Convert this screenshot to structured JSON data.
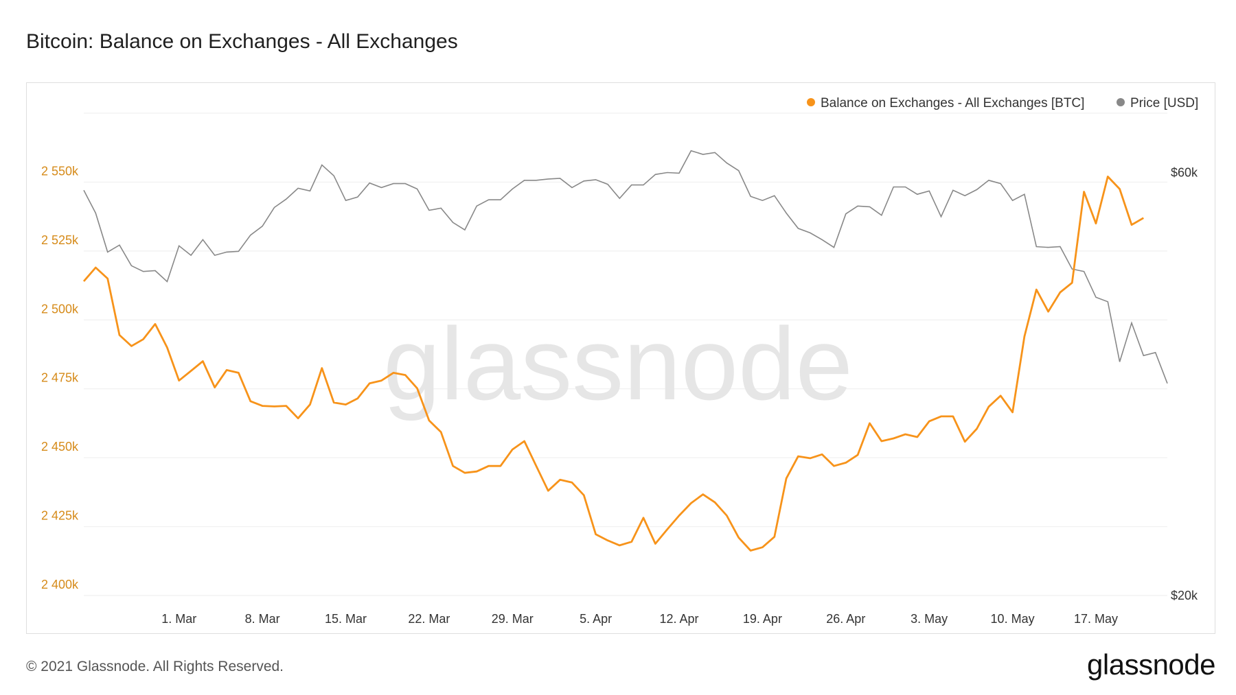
{
  "title": "Bitcoin: Balance on Exchanges - All Exchanges",
  "footer": {
    "copyright": "© 2021 Glassnode. All Rights Reserved.",
    "logo": "glassnode"
  },
  "watermark": "glassnode",
  "colors": {
    "balance": "#f7931a",
    "price": "#888888",
    "grid": "#eeeeee",
    "left_tick": "#d68b1a"
  },
  "chart_data": {
    "type": "line",
    "x_start": "2021-02-21",
    "x_end": "2021-05-23",
    "x_ticks": [
      {
        "label": "1. Mar",
        "date": "2021-03-01"
      },
      {
        "label": "8. Mar",
        "date": "2021-03-08"
      },
      {
        "label": "15. Mar",
        "date": "2021-03-15"
      },
      {
        "label": "22. Mar",
        "date": "2021-03-22"
      },
      {
        "label": "29. Mar",
        "date": "2021-03-29"
      },
      {
        "label": "5. Apr",
        "date": "2021-04-05"
      },
      {
        "label": "12. Apr",
        "date": "2021-04-12"
      },
      {
        "label": "19. Apr",
        "date": "2021-04-19"
      },
      {
        "label": "26. Apr",
        "date": "2021-04-26"
      },
      {
        "label": "3. May",
        "date": "2021-05-03"
      },
      {
        "label": "10. May",
        "date": "2021-05-10"
      },
      {
        "label": "17. May",
        "date": "2021-05-17"
      }
    ],
    "y_left": {
      "min": 2400000,
      "max": 2575000,
      "ticks": [
        {
          "v": 2400000,
          "label": "2 400k"
        },
        {
          "v": 2425000,
          "label": "2 425k"
        },
        {
          "v": 2450000,
          "label": "2 450k"
        },
        {
          "v": 2475000,
          "label": "2 475k"
        },
        {
          "v": 2500000,
          "label": "2 500k"
        },
        {
          "v": 2525000,
          "label": "2 525k"
        },
        {
          "v": 2550000,
          "label": "2 550k"
        }
      ]
    },
    "y_right": {
      "scale": "log",
      "min": 20000,
      "max": 70000,
      "ticks": [
        {
          "v": 20000,
          "label": "$20k"
        },
        {
          "v": 60000,
          "label": "$60k"
        }
      ]
    },
    "legend_position": "top-right",
    "series": [
      {
        "name": "Balance on Exchanges - All Exchanges [BTC]",
        "axis": "left",
        "points": [
          [
            "2021-02-21",
            2514000
          ],
          [
            "2021-02-22",
            2519000
          ],
          [
            "2021-02-23",
            2515000
          ],
          [
            "2021-02-24",
            2494500
          ],
          [
            "2021-02-25",
            2490500
          ],
          [
            "2021-02-26",
            2493000
          ],
          [
            "2021-02-27",
            2498500
          ],
          [
            "2021-02-28",
            2490000
          ],
          [
            "2021-03-01",
            2478000
          ],
          [
            "2021-03-02",
            2481500
          ],
          [
            "2021-03-03",
            2485000
          ],
          [
            "2021-03-04",
            2475500
          ],
          [
            "2021-03-05",
            2481800
          ],
          [
            "2021-03-06",
            2480800
          ],
          [
            "2021-03-07",
            2470500
          ],
          [
            "2021-03-08",
            2468800
          ],
          [
            "2021-03-09",
            2468600
          ],
          [
            "2021-03-10",
            2468800
          ],
          [
            "2021-03-11",
            2464300
          ],
          [
            "2021-03-12",
            2469300
          ],
          [
            "2021-03-13",
            2482500
          ],
          [
            "2021-03-14",
            2470000
          ],
          [
            "2021-03-15",
            2469300
          ],
          [
            "2021-03-16",
            2471500
          ],
          [
            "2021-03-17",
            2477000
          ],
          [
            "2021-03-18",
            2478000
          ],
          [
            "2021-03-19",
            2480800
          ],
          [
            "2021-03-20",
            2480000
          ],
          [
            "2021-03-21",
            2475200
          ],
          [
            "2021-03-22",
            2463500
          ],
          [
            "2021-03-23",
            2459300
          ],
          [
            "2021-03-24",
            2447000
          ],
          [
            "2021-03-25",
            2444500
          ],
          [
            "2021-03-26",
            2445000
          ],
          [
            "2021-03-27",
            2447000
          ],
          [
            "2021-03-28",
            2447000
          ],
          [
            "2021-03-29",
            2453000
          ],
          [
            "2021-03-30",
            2456000
          ],
          [
            "2021-03-31",
            2447000
          ],
          [
            "2021-04-01",
            2438000
          ],
          [
            "2021-04-02",
            2442000
          ],
          [
            "2021-04-03",
            2441000
          ],
          [
            "2021-04-04",
            2436400
          ],
          [
            "2021-04-05",
            2422200
          ],
          [
            "2021-04-06",
            2420000
          ],
          [
            "2021-04-07",
            2418200
          ],
          [
            "2021-04-08",
            2419500
          ],
          [
            "2021-04-09",
            2428200
          ],
          [
            "2021-04-10",
            2418800
          ],
          [
            "2021-04-11",
            2424000
          ],
          [
            "2021-04-12",
            2429000
          ],
          [
            "2021-04-13",
            2433500
          ],
          [
            "2021-04-14",
            2436700
          ],
          [
            "2021-04-15",
            2433800
          ],
          [
            "2021-04-16",
            2429000
          ],
          [
            "2021-04-17",
            2421000
          ],
          [
            "2021-04-18",
            2416300
          ],
          [
            "2021-04-19",
            2417500
          ],
          [
            "2021-04-20",
            2421300
          ],
          [
            "2021-04-21",
            2442500
          ],
          [
            "2021-04-22",
            2450500
          ],
          [
            "2021-04-23",
            2449800
          ],
          [
            "2021-04-24",
            2451200
          ],
          [
            "2021-04-25",
            2447000
          ],
          [
            "2021-04-26",
            2448200
          ],
          [
            "2021-04-27",
            2451000
          ],
          [
            "2021-04-28",
            2462500
          ],
          [
            "2021-04-29",
            2456000
          ],
          [
            "2021-04-30",
            2457000
          ],
          [
            "2021-05-01",
            2458500
          ],
          [
            "2021-05-02",
            2457500
          ],
          [
            "2021-05-03",
            2463200
          ],
          [
            "2021-05-04",
            2465000
          ],
          [
            "2021-05-05",
            2465000
          ],
          [
            "2021-05-06",
            2455800
          ],
          [
            "2021-05-07",
            2460500
          ],
          [
            "2021-05-08",
            2468500
          ],
          [
            "2021-05-09",
            2472500
          ],
          [
            "2021-05-10",
            2466500
          ],
          [
            "2021-05-11",
            2494000
          ],
          [
            "2021-05-12",
            2511000
          ],
          [
            "2021-05-13",
            2503000
          ],
          [
            "2021-05-14",
            2510000
          ],
          [
            "2021-05-15",
            2513500
          ],
          [
            "2021-05-16",
            2546500
          ],
          [
            "2021-05-17",
            2535000
          ],
          [
            "2021-05-18",
            2552000
          ],
          [
            "2021-05-19",
            2547500
          ],
          [
            "2021-05-20",
            2534500
          ],
          [
            "2021-05-21",
            2537000
          ]
        ]
      },
      {
        "name": "Price [USD]",
        "axis": "right",
        "points": [
          [
            "2021-02-21",
            57300
          ],
          [
            "2021-02-22",
            54000
          ],
          [
            "2021-02-23",
            48800
          ],
          [
            "2021-02-24",
            49700
          ],
          [
            "2021-02-25",
            47100
          ],
          [
            "2021-02-26",
            46400
          ],
          [
            "2021-02-27",
            46500
          ],
          [
            "2021-02-28",
            45200
          ],
          [
            "2021-03-01",
            49600
          ],
          [
            "2021-03-02",
            48400
          ],
          [
            "2021-03-03",
            50400
          ],
          [
            "2021-03-04",
            48400
          ],
          [
            "2021-03-05",
            48800
          ],
          [
            "2021-03-06",
            48900
          ],
          [
            "2021-03-07",
            51000
          ],
          [
            "2021-03-08",
            52200
          ],
          [
            "2021-03-09",
            54800
          ],
          [
            "2021-03-10",
            56000
          ],
          [
            "2021-03-11",
            57600
          ],
          [
            "2021-03-12",
            57200
          ],
          [
            "2021-03-13",
            61200
          ],
          [
            "2021-03-14",
            59500
          ],
          [
            "2021-03-15",
            55800
          ],
          [
            "2021-03-16",
            56300
          ],
          [
            "2021-03-17",
            58400
          ],
          [
            "2021-03-18",
            57700
          ],
          [
            "2021-03-19",
            58300
          ],
          [
            "2021-03-20",
            58300
          ],
          [
            "2021-03-21",
            57500
          ],
          [
            "2021-03-22",
            54400
          ],
          [
            "2021-03-23",
            54700
          ],
          [
            "2021-03-24",
            52700
          ],
          [
            "2021-03-25",
            51700
          ],
          [
            "2021-03-26",
            55000
          ],
          [
            "2021-03-27",
            55900
          ],
          [
            "2021-03-28",
            55900
          ],
          [
            "2021-03-29",
            57500
          ],
          [
            "2021-03-30",
            58800
          ],
          [
            "2021-03-31",
            58800
          ],
          [
            "2021-04-01",
            59000
          ],
          [
            "2021-04-02",
            59100
          ],
          [
            "2021-04-03",
            57700
          ],
          [
            "2021-04-04",
            58700
          ],
          [
            "2021-04-05",
            58900
          ],
          [
            "2021-04-06",
            58200
          ],
          [
            "2021-04-07",
            56100
          ],
          [
            "2021-04-08",
            58100
          ],
          [
            "2021-04-09",
            58100
          ],
          [
            "2021-04-10",
            59700
          ],
          [
            "2021-04-11",
            60000
          ],
          [
            "2021-04-12",
            59900
          ],
          [
            "2021-04-13",
            63500
          ],
          [
            "2021-04-14",
            62900
          ],
          [
            "2021-04-15",
            63200
          ],
          [
            "2021-04-16",
            61500
          ],
          [
            "2021-04-17",
            60300
          ],
          [
            "2021-04-18",
            56400
          ],
          [
            "2021-04-19",
            55800
          ],
          [
            "2021-04-20",
            56500
          ],
          [
            "2021-04-21",
            54000
          ],
          [
            "2021-04-22",
            51900
          ],
          [
            "2021-04-23",
            51300
          ],
          [
            "2021-04-24",
            50400
          ],
          [
            "2021-04-25",
            49400
          ],
          [
            "2021-04-26",
            53900
          ],
          [
            "2021-04-27",
            55000
          ],
          [
            "2021-04-28",
            54900
          ],
          [
            "2021-04-29",
            53700
          ],
          [
            "2021-04-30",
            57800
          ],
          [
            "2021-05-01",
            57800
          ],
          [
            "2021-05-02",
            56700
          ],
          [
            "2021-05-03",
            57200
          ],
          [
            "2021-05-04",
            53500
          ],
          [
            "2021-05-05",
            57300
          ],
          [
            "2021-05-06",
            56500
          ],
          [
            "2021-05-07",
            57400
          ],
          [
            "2021-05-08",
            58800
          ],
          [
            "2021-05-09",
            58300
          ],
          [
            "2021-05-10",
            55800
          ],
          [
            "2021-05-11",
            56700
          ],
          [
            "2021-05-12",
            49500
          ],
          [
            "2021-05-13",
            49400
          ],
          [
            "2021-05-14",
            49500
          ],
          [
            "2021-05-15",
            46700
          ],
          [
            "2021-05-16",
            46400
          ],
          [
            "2021-05-17",
            43400
          ],
          [
            "2021-05-18",
            42900
          ],
          [
            "2021-05-19",
            36700
          ],
          [
            "2021-05-20",
            40600
          ],
          [
            "2021-05-21",
            37300
          ],
          [
            "2021-05-22",
            37600
          ],
          [
            "2021-05-23",
            34700
          ]
        ]
      }
    ]
  }
}
